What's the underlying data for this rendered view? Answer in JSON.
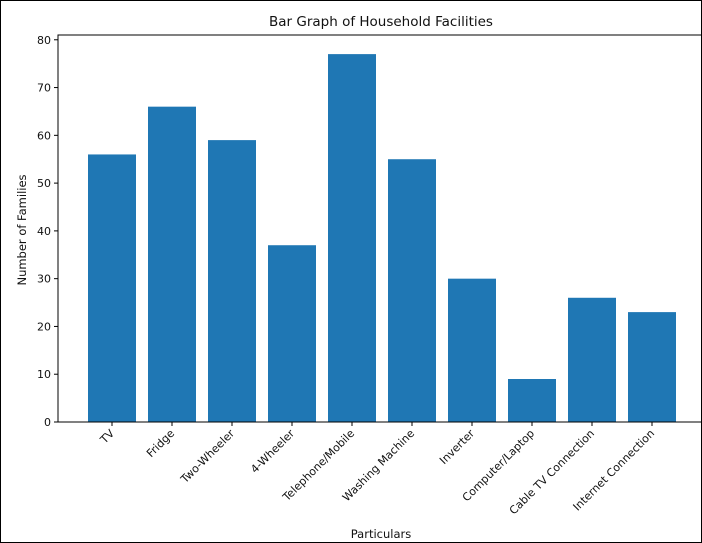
{
  "chart_data": {
    "type": "bar",
    "title": "Bar Graph of Household Facilities",
    "xlabel": "Particulars",
    "ylabel": "Number of Families",
    "categories": [
      "TV",
      "Fridge",
      "Two-Wheeler",
      "4-Wheeler",
      "Telephone/Mobile",
      "Washing Machine",
      "Inverter",
      "Computer/Laptop",
      "Cable TV Connection",
      "Internet Connection"
    ],
    "values": [
      56,
      66,
      59,
      37,
      77,
      55,
      30,
      9,
      26,
      23
    ],
    "ylim": [
      0,
      81
    ],
    "yticks": [
      0,
      10,
      20,
      30,
      40,
      50,
      60,
      70,
      80
    ],
    "grid": false,
    "bar_color": "#1f77b4"
  }
}
